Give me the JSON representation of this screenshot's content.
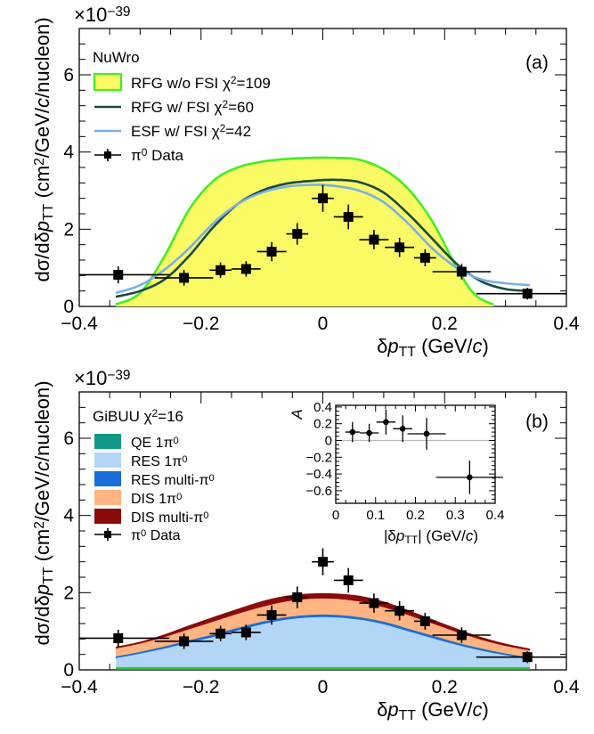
{
  "chart_data": [
    {
      "panel": "(a)",
      "type": "line",
      "exponent_label": "×10",
      "exponent": "−39",
      "ylabel_parts": [
        "dσ/dδ",
        "p",
        "TT",
        " (cm",
        "2",
        "/GeV/",
        "c",
        "/nucleon)"
      ],
      "xlabel_parts": [
        "δ",
        "p",
        "TT",
        " (GeV/",
        "c",
        ")"
      ],
      "xlim": [
        -0.4,
        0.4
      ],
      "ylim": [
        0,
        7.2
      ],
      "xticks": [
        -0.4,
        -0.2,
        0,
        0.2,
        0.4
      ],
      "xtick_labels": [
        "−0.4",
        "−0.2",
        "0",
        "0.2",
        "0.4"
      ],
      "yticks": [
        0,
        2,
        4,
        6
      ],
      "ytick_labels": [
        "0",
        "2",
        "4",
        "6"
      ],
      "legend_title": "NuWro",
      "legend": [
        {
          "label": "RFG w/o FSI",
          "chi": "χ",
          "chi_sup": "2",
          "chi_val": "=109",
          "kind": "box",
          "fill": "#fafa64",
          "stroke": "#44ee22"
        },
        {
          "label": "RFG w/ FSI",
          "chi": "χ",
          "chi_sup": "2",
          "chi_val": "=60",
          "kind": "line",
          "color": "#1a4a44"
        },
        {
          "label": "ESF w/ FSI",
          "chi": "χ",
          "chi_sup": "2",
          "chi_val": "=42",
          "kind": "line",
          "color": "#7ab0e4"
        },
        {
          "label": "π",
          "label_sup": "0",
          "label_rest": " Data",
          "kind": "data",
          "color": "#000000"
        }
      ],
      "series": [
        {
          "name": "RFG w/o FSI",
          "style": "filled",
          "fill": "#fafa64",
          "stroke": "#44ee22",
          "x": [
            -0.34,
            -0.3,
            -0.26,
            -0.22,
            -0.18,
            -0.14,
            -0.1,
            -0.06,
            -0.02,
            0.02,
            0.06,
            0.1,
            0.14,
            0.18,
            0.22,
            0.25,
            0.28
          ],
          "y": [
            0.05,
            0.35,
            1.3,
            2.5,
            3.25,
            3.6,
            3.75,
            3.82,
            3.85,
            3.85,
            3.8,
            3.55,
            3.05,
            2.2,
            1.0,
            0.3,
            0.05
          ]
        },
        {
          "name": "RFG w/ FSI",
          "style": "line",
          "color": "#1a4a44",
          "x": [
            -0.34,
            -0.3,
            -0.26,
            -0.22,
            -0.18,
            -0.14,
            -0.1,
            -0.06,
            -0.02,
            0.02,
            0.06,
            0.1,
            0.14,
            0.18,
            0.22,
            0.26,
            0.3,
            0.34
          ],
          "y": [
            0.25,
            0.4,
            0.7,
            1.3,
            2.05,
            2.65,
            3.0,
            3.18,
            3.25,
            3.28,
            3.22,
            2.95,
            2.4,
            1.75,
            1.1,
            0.65,
            0.45,
            0.4
          ]
        },
        {
          "name": "ESF w/ FSI",
          "style": "line",
          "color": "#7ab0e4",
          "x": [
            -0.34,
            -0.3,
            -0.26,
            -0.22,
            -0.18,
            -0.14,
            -0.1,
            -0.06,
            -0.02,
            0.02,
            0.06,
            0.1,
            0.14,
            0.18,
            0.22,
            0.26,
            0.3,
            0.34
          ],
          "y": [
            0.35,
            0.55,
            0.95,
            1.5,
            2.15,
            2.65,
            2.95,
            3.1,
            3.15,
            3.12,
            3.0,
            2.7,
            2.15,
            1.5,
            1.0,
            0.7,
            0.6,
            0.55
          ]
        }
      ],
      "data_points": {
        "name": "π0 Data",
        "x": [
          -0.336,
          -0.228,
          -0.168,
          -0.126,
          -0.084,
          -0.042,
          0.0,
          0.042,
          0.084,
          0.126,
          0.168,
          0.228,
          0.336
        ],
        "xerr": [
          0.084,
          0.048,
          0.018,
          0.024,
          0.024,
          0.018,
          0.018,
          0.024,
          0.024,
          0.024,
          0.018,
          0.048,
          0.084
        ],
        "y": [
          0.82,
          0.74,
          0.94,
          0.97,
          1.42,
          1.88,
          2.8,
          2.32,
          1.73,
          1.53,
          1.26,
          0.9,
          0.33
        ],
        "yerr": [
          0.22,
          0.2,
          0.2,
          0.2,
          0.25,
          0.28,
          0.35,
          0.32,
          0.25,
          0.25,
          0.22,
          0.2,
          0.15
        ]
      }
    },
    {
      "panel": "(b)",
      "type": "area",
      "exponent_label": "×10",
      "exponent": "−39",
      "ylabel_parts": [
        "dσ/dδ",
        "p",
        "TT",
        " (cm",
        "2",
        "/GeV/",
        "c",
        "/nucleon)"
      ],
      "xlabel_parts": [
        "δ",
        "p",
        "TT",
        " (GeV/",
        "c",
        ")"
      ],
      "xlim": [
        -0.4,
        0.4
      ],
      "ylim": [
        0,
        7.2
      ],
      "xticks": [
        -0.4,
        -0.2,
        0,
        0.2,
        0.4
      ],
      "xtick_labels": [
        "−0.4",
        "−0.2",
        "0",
        "0.2",
        "0.4"
      ],
      "yticks": [
        0,
        2,
        4,
        6
      ],
      "ytick_labels": [
        "0",
        "2",
        "4",
        "6"
      ],
      "legend_title": "GiBUU",
      "legend_title_chi": "χ",
      "legend_title_chi_sup": "2",
      "legend_title_chi_val": "=16",
      "legend": [
        {
          "label": "QE 1π",
          "label_sup": "0",
          "kind": "box",
          "fill": "#119988"
        },
        {
          "label": "RES 1π",
          "label_sup": "0",
          "kind": "box",
          "fill": "#b4d6f6"
        },
        {
          "label": "RES multi-π",
          "label_sup": "0",
          "kind": "box",
          "fill": "#1a6ed8"
        },
        {
          "label": "DIS 1π",
          "label_sup": "0",
          "kind": "box",
          "fill": "#ffb482"
        },
        {
          "label": "DIS multi-π",
          "label_sup": "0",
          "kind": "box",
          "fill": "#8b0a0a"
        },
        {
          "label": "π",
          "label_sup": "0",
          "label_rest": " Data",
          "kind": "data",
          "color": "#000000"
        }
      ],
      "stack_x": [
        -0.34,
        -0.3,
        -0.26,
        -0.22,
        -0.18,
        -0.14,
        -0.1,
        -0.06,
        -0.02,
        0.02,
        0.06,
        0.1,
        0.14,
        0.18,
        0.22,
        0.26,
        0.3,
        0.34
      ],
      "stack": [
        {
          "name": "QE 1π0",
          "fill": "#119988",
          "stroke": "#33cc33",
          "cum": [
            0.05,
            0.05,
            0.05,
            0.05,
            0.05,
            0.05,
            0.05,
            0.05,
            0.05,
            0.05,
            0.05,
            0.05,
            0.05,
            0.05,
            0.05,
            0.05,
            0.05,
            0.05
          ]
        },
        {
          "name": "RES 1π0",
          "fill": "#b4d6f6",
          "cum": [
            0.3,
            0.42,
            0.55,
            0.7,
            0.85,
            1.02,
            1.18,
            1.3,
            1.36,
            1.36,
            1.3,
            1.18,
            1.0,
            0.82,
            0.65,
            0.5,
            0.38,
            0.28
          ]
        },
        {
          "name": "RES multi-π0",
          "fill": "#1a6ed8",
          "cum": [
            0.32,
            0.44,
            0.58,
            0.74,
            0.89,
            1.06,
            1.22,
            1.34,
            1.4,
            1.4,
            1.34,
            1.22,
            1.04,
            0.86,
            0.68,
            0.53,
            0.4,
            0.3
          ]
        },
        {
          "name": "DIS 1π0",
          "fill": "#ffb482",
          "cum": [
            0.55,
            0.68,
            0.85,
            1.05,
            1.25,
            1.45,
            1.63,
            1.77,
            1.84,
            1.84,
            1.77,
            1.62,
            1.42,
            1.2,
            0.98,
            0.78,
            0.62,
            0.5
          ]
        },
        {
          "name": "DIS multi-π0",
          "fill": "#8b0a0a",
          "cum": [
            0.6,
            0.73,
            0.92,
            1.15,
            1.37,
            1.58,
            1.78,
            1.92,
            1.98,
            1.98,
            1.92,
            1.77,
            1.55,
            1.31,
            1.07,
            0.85,
            0.68,
            0.55
          ]
        }
      ],
      "data_points": {
        "name": "π0 Data",
        "x": [
          -0.336,
          -0.228,
          -0.168,
          -0.126,
          -0.084,
          -0.042,
          0.0,
          0.042,
          0.084,
          0.126,
          0.168,
          0.228,
          0.336
        ],
        "xerr": [
          0.084,
          0.048,
          0.018,
          0.024,
          0.024,
          0.018,
          0.018,
          0.024,
          0.024,
          0.024,
          0.018,
          0.048,
          0.084
        ],
        "y": [
          0.82,
          0.74,
          0.94,
          0.97,
          1.42,
          1.88,
          2.8,
          2.32,
          1.73,
          1.53,
          1.26,
          0.9,
          0.33
        ],
        "yerr": [
          0.22,
          0.2,
          0.2,
          0.2,
          0.25,
          0.28,
          0.35,
          0.32,
          0.25,
          0.25,
          0.22,
          0.2,
          0.15
        ]
      },
      "inset": {
        "type": "scatter",
        "ylabel": "A",
        "xlabel_parts": [
          "|δ",
          "p",
          "TT",
          "| (GeV/",
          "c",
          ")"
        ],
        "xlim": [
          0,
          0.4
        ],
        "ylim": [
          -0.75,
          0.42
        ],
        "xticks": [
          0,
          0.1,
          0.2,
          0.3,
          0.4
        ],
        "xtick_labels": [
          "0",
          "0.1",
          "0.2",
          "0.3",
          "0.4"
        ],
        "yticks": [
          0.4,
          0.2,
          0,
          -0.2,
          -0.4,
          -0.6
        ],
        "ytick_labels": [
          "0.4",
          "0.2",
          "0",
          "−0.2",
          "−0.4",
          "−0.6"
        ],
        "zero_line_color": "#bbbbbb",
        "x": [
          0.042,
          0.084,
          0.126,
          0.168,
          0.228,
          0.336
        ],
        "xerr": [
          0.018,
          0.024,
          0.024,
          0.024,
          0.048,
          0.084
        ],
        "y": [
          0.1,
          0.09,
          0.22,
          0.14,
          0.08,
          -0.44
        ],
        "yerr": [
          0.12,
          0.11,
          0.15,
          0.16,
          0.19,
          0.2
        ]
      }
    }
  ]
}
